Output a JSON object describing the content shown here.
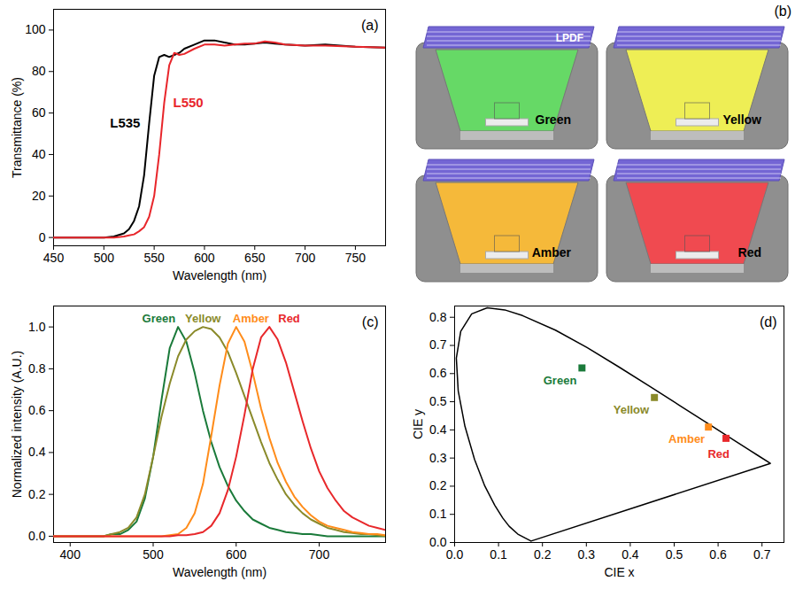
{
  "chart_data": [
    {
      "type": "line",
      "title": "(a)",
      "x_label": "Wavelength (nm)",
      "y_label": "Transmittance (%)",
      "x": [
        450,
        500,
        510,
        520,
        525,
        530,
        535,
        540,
        545,
        550,
        555,
        560,
        565,
        570,
        575,
        580,
        590,
        600,
        610,
        620,
        630,
        640,
        650,
        660,
        670,
        680,
        700,
        720,
        750,
        780
      ],
      "series": [
        {
          "name": "L535",
          "color": "#000000",
          "values": [
            0,
            0,
            0.5,
            2,
            4,
            8,
            15,
            30,
            55,
            78,
            87,
            88,
            87,
            88,
            89,
            91,
            93,
            95,
            95,
            94,
            93,
            93,
            93.5,
            94,
            93.5,
            93,
            92.5,
            93,
            92,
            91.5
          ]
        },
        {
          "name": "L550",
          "color": "#e8262b",
          "values": [
            0,
            0,
            0,
            0.5,
            1,
            1.5,
            3,
            5,
            10,
            20,
            40,
            65,
            83,
            89,
            88,
            88.5,
            91,
            93,
            93,
            92.5,
            93,
            93.5,
            93.5,
            94.5,
            94,
            93,
            92.5,
            92.5,
            92,
            91.5
          ]
        }
      ],
      "xlim": [
        450,
        780
      ],
      "ylim": [
        -4,
        110
      ],
      "xticks": [
        450,
        500,
        550,
        600,
        650,
        700,
        750
      ],
      "yticks": [
        0,
        20,
        40,
        60,
        80,
        100
      ]
    },
    {
      "type": "diagram",
      "title": "(b)",
      "filter_label": "LPDF",
      "labels": [
        "Green",
        "Yellow",
        "Amber",
        "Red"
      ],
      "colors": [
        "#66d966",
        "#eeee55",
        "#f5b93a",
        "#f04a50"
      ]
    },
    {
      "type": "line",
      "title": "(c)",
      "x_label": "Wavelength (nm)",
      "y_label": "Normalized intensity (A.U.)",
      "x": [
        380,
        390,
        400,
        410,
        420,
        430,
        440,
        450,
        460,
        470,
        480,
        490,
        500,
        510,
        520,
        530,
        540,
        550,
        560,
        570,
        580,
        590,
        600,
        610,
        620,
        630,
        640,
        650,
        660,
        670,
        680,
        690,
        700,
        710,
        720,
        730,
        740,
        750,
        760,
        770,
        780
      ],
      "series": [
        {
          "name": "Green",
          "color": "#1a7a3a",
          "values": [
            0,
            0,
            0,
            0,
            0,
            0,
            0,
            0.01,
            0.01,
            0.03,
            0.07,
            0.18,
            0.38,
            0.65,
            0.9,
            1.0,
            0.93,
            0.78,
            0.6,
            0.45,
            0.33,
            0.24,
            0.17,
            0.12,
            0.08,
            0.06,
            0.04,
            0.03,
            0.02,
            0.015,
            0.01,
            0.01,
            0.005,
            0,
            0,
            0,
            0,
            0,
            0,
            0,
            0
          ]
        },
        {
          "name": "Yellow",
          "color": "#8a8a2a",
          "values": [
            0,
            0,
            0,
            0,
            0,
            0,
            0,
            0.01,
            0.02,
            0.04,
            0.09,
            0.2,
            0.38,
            0.57,
            0.73,
            0.86,
            0.94,
            0.98,
            1.0,
            0.99,
            0.95,
            0.88,
            0.78,
            0.67,
            0.56,
            0.45,
            0.35,
            0.27,
            0.2,
            0.15,
            0.11,
            0.08,
            0.06,
            0.04,
            0.03,
            0.02,
            0.015,
            0.01,
            0.01,
            0.005,
            0
          ]
        },
        {
          "name": "Amber",
          "color": "#ff8c1a",
          "values": [
            0,
            0,
            0,
            0,
            0,
            0,
            0,
            0,
            0,
            0,
            0,
            0,
            0,
            0,
            0.005,
            0.01,
            0.04,
            0.11,
            0.25,
            0.48,
            0.72,
            0.92,
            1.0,
            0.93,
            0.78,
            0.61,
            0.47,
            0.35,
            0.26,
            0.19,
            0.14,
            0.1,
            0.07,
            0.05,
            0.04,
            0.03,
            0.02,
            0.015,
            0.01,
            0.01,
            0.005
          ]
        },
        {
          "name": "Red",
          "color": "#e8282b",
          "values": [
            0,
            0,
            0,
            0,
            0,
            0,
            0,
            0,
            0,
            0,
            0,
            0,
            0,
            0,
            0,
            0.005,
            0.005,
            0.01,
            0.02,
            0.05,
            0.11,
            0.22,
            0.38,
            0.58,
            0.8,
            0.95,
            1.0,
            0.94,
            0.83,
            0.69,
            0.55,
            0.42,
            0.31,
            0.23,
            0.17,
            0.12,
            0.09,
            0.07,
            0.05,
            0.04,
            0.03
          ]
        }
      ],
      "xlim": [
        380,
        780
      ],
      "ylim": [
        -0.03,
        1.1
      ],
      "xticks": [
        400,
        500,
        600,
        700
      ],
      "yticks": [
        {
          "value": 0,
          "label": "0.0"
        },
        {
          "value": 0.2,
          "label": "0.2"
        },
        {
          "value": 0.4,
          "label": "0.4"
        },
        {
          "value": 0.6,
          "label": "0.6"
        },
        {
          "value": 0.8,
          "label": "0.8"
        },
        {
          "value": 1,
          "label": "1.0"
        }
      ]
    },
    {
      "type": "scatter",
      "title": "(d)",
      "x_label": "CIE x",
      "y_label": "CIE y",
      "locus": {
        "color": "#000000",
        "x": [
          0.1741,
          0.144,
          0.1241,
          0.1096,
          0.0913,
          0.0687,
          0.0454,
          0.0235,
          0.0082,
          0.0039,
          0.0139,
          0.0389,
          0.0743,
          0.1142,
          0.1547,
          0.2296,
          0.3016,
          0.3731,
          0.4441,
          0.5125,
          0.5752,
          0.627,
          0.6915,
          0.719
        ],
        "y": [
          0.005,
          0.0297,
          0.0578,
          0.0868,
          0.1327,
          0.2007,
          0.295,
          0.4127,
          0.5384,
          0.6548,
          0.7502,
          0.812,
          0.8338,
          0.8262,
          0.8059,
          0.7543,
          0.6923,
          0.6245,
          0.5547,
          0.4866,
          0.4242,
          0.3725,
          0.3083,
          0.2809
        ]
      },
      "series": [
        {
          "name": "Green",
          "color": "#1a7a3a",
          "marker": "square",
          "x": [
            0.29
          ],
          "y": [
            0.62
          ]
        },
        {
          "name": "Yellow",
          "color": "#8a8a2a",
          "marker": "square",
          "x": [
            0.455
          ],
          "y": [
            0.515
          ]
        },
        {
          "name": "Amber",
          "color": "#ff8c1a",
          "marker": "square",
          "x": [
            0.578
          ],
          "y": [
            0.41
          ]
        },
        {
          "name": "Red",
          "color": "#e8282b",
          "marker": "square",
          "x": [
            0.618
          ],
          "y": [
            0.37
          ]
        }
      ],
      "xlim": [
        0,
        0.75
      ],
      "ylim": [
        0,
        0.84
      ],
      "xticks": [
        {
          "value": 0,
          "label": "0.0"
        },
        {
          "value": 0.1,
          "label": "0.1"
        },
        {
          "value": 0.2,
          "label": "0.2"
        },
        {
          "value": 0.3,
          "label": "0.3"
        },
        {
          "value": 0.4,
          "label": "0.4"
        },
        {
          "value": 0.5,
          "label": "0.5"
        },
        {
          "value": 0.6,
          "label": "0.6"
        },
        {
          "value": 0.7,
          "label": "0.7"
        }
      ],
      "yticks": [
        {
          "value": 0,
          "label": "0.0"
        },
        {
          "value": 0.1,
          "label": "0.1"
        },
        {
          "value": 0.2,
          "label": "0.2"
        },
        {
          "value": 0.3,
          "label": "0.3"
        },
        {
          "value": 0.4,
          "label": "0.4"
        },
        {
          "value": 0.5,
          "label": "0.5"
        },
        {
          "value": 0.6,
          "label": "0.6"
        },
        {
          "value": 0.7,
          "label": "0.7"
        },
        {
          "value": 0.8,
          "label": "0.8"
        }
      ]
    }
  ]
}
